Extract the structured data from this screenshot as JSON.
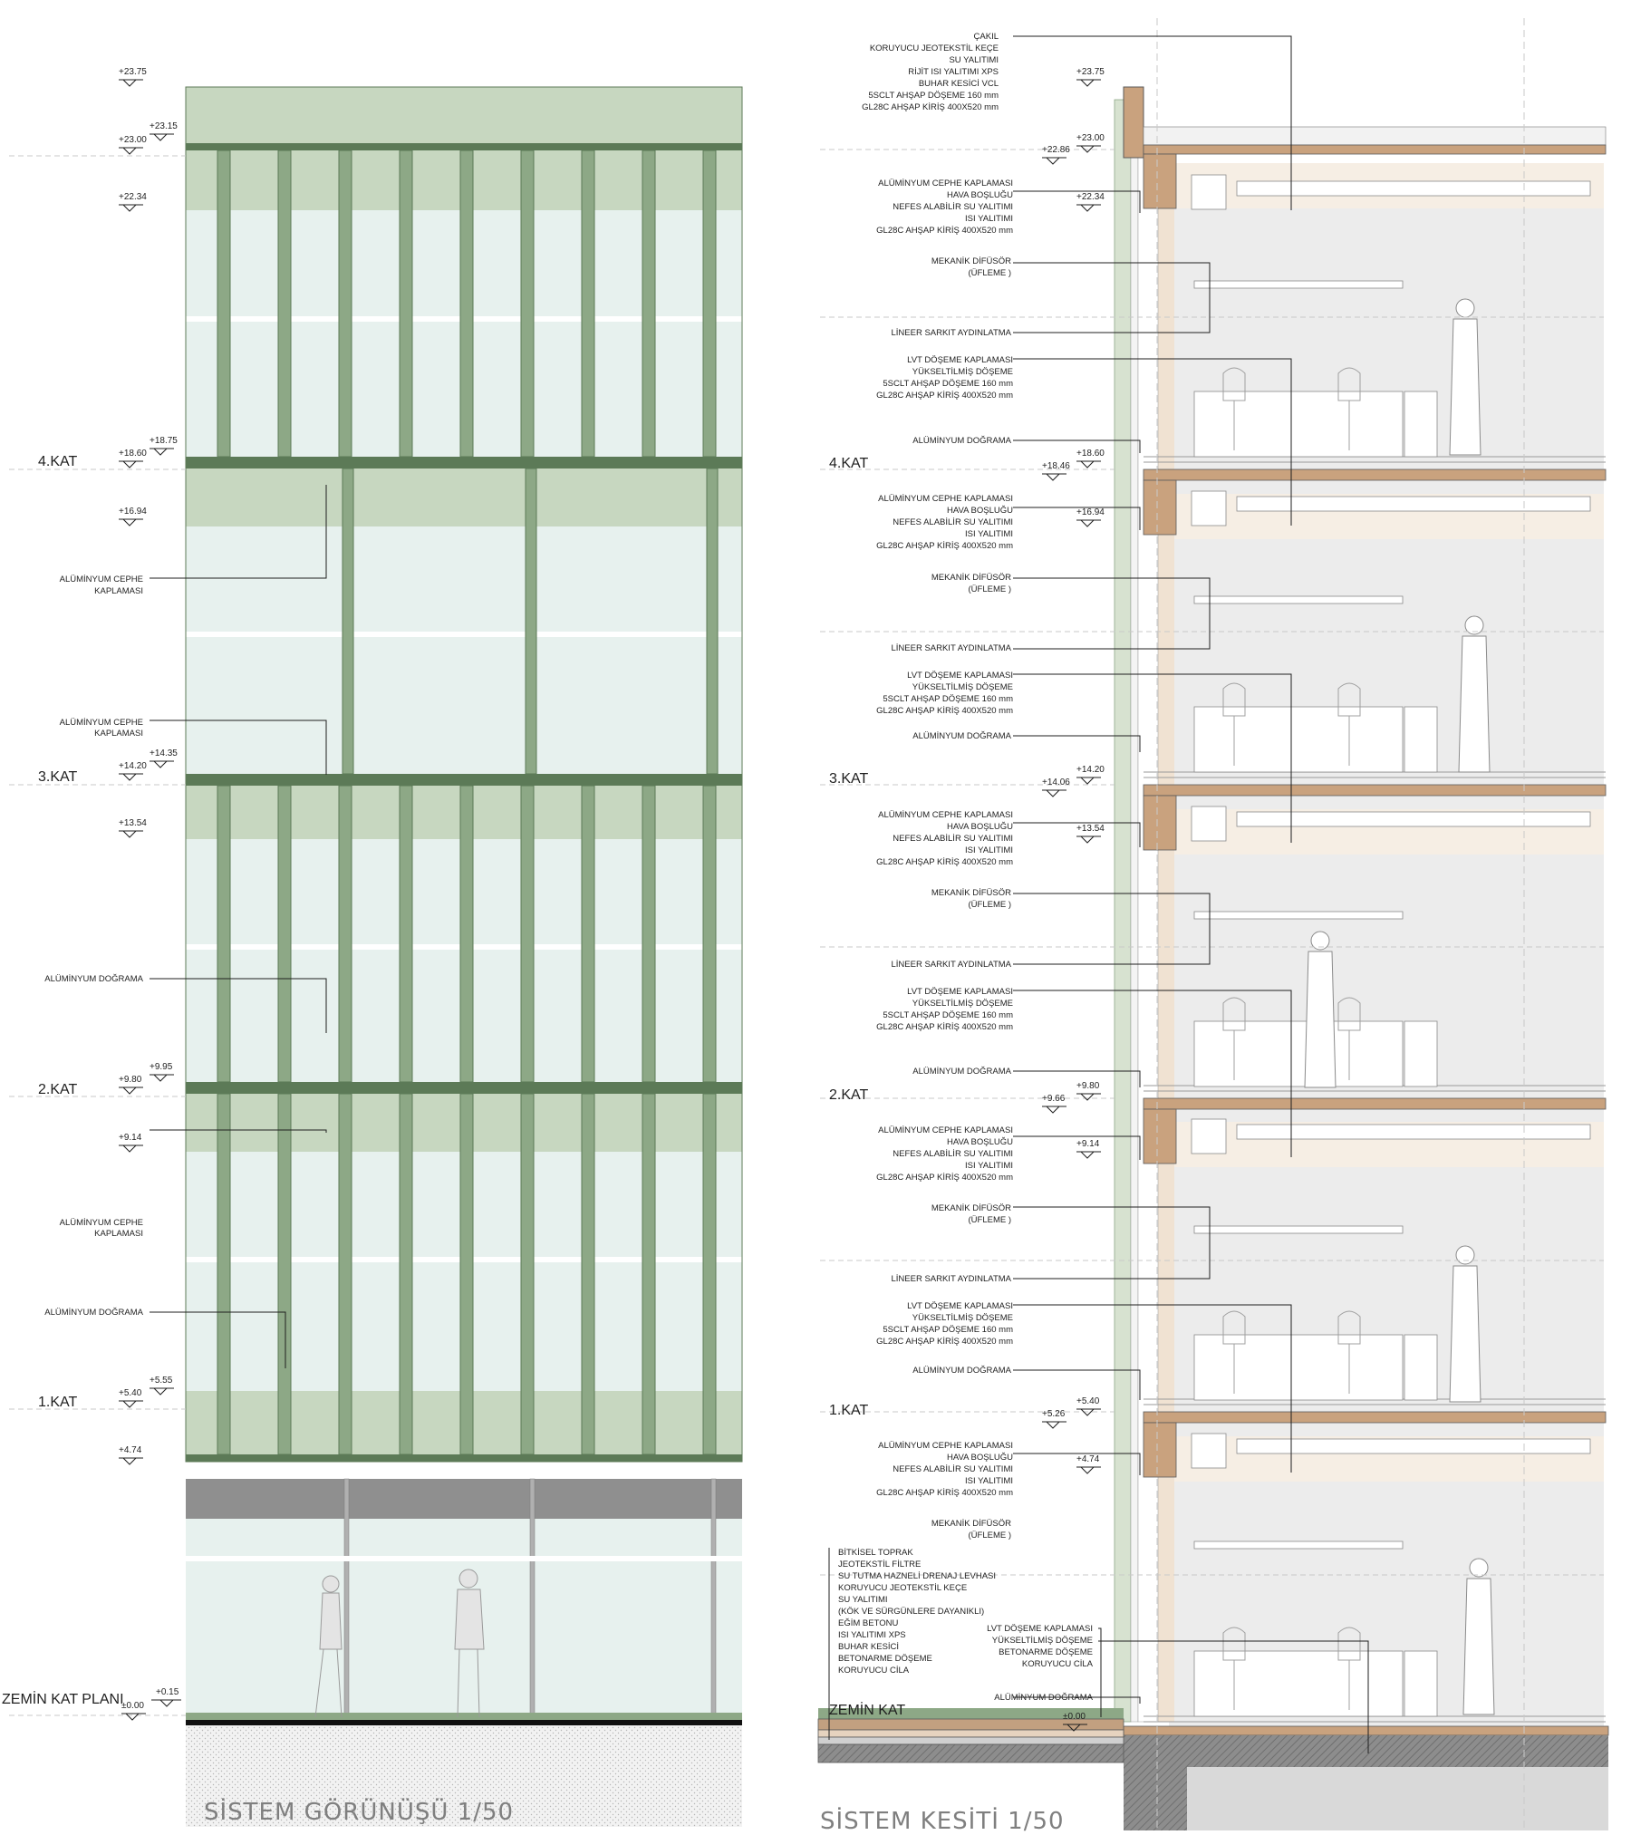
{
  "elevation": {
    "title": "SİSTEM GÖRÜNÜŞÜ  1/50",
    "levels": [
      "+23.75",
      "+23.15",
      "+23.00",
      "+22.34",
      "+18.75",
      "+18.60",
      "+16.94",
      "+14.35",
      "+14.20",
      "+13.54",
      "+9.95",
      "+9.80",
      "+9.14",
      "+5.55",
      "+5.40",
      "+4.74",
      "+0.15",
      "±0.00"
    ],
    "floors": [
      "4.KAT",
      "3.KAT",
      "2.KAT",
      "1.KAT",
      "ZEMİN KAT PLANI"
    ],
    "notes": [
      "ALÜMİNYUM CEPHE",
      "KAPLAMASI",
      "ALÜMİNYUM DOĞRAMA"
    ]
  },
  "section": {
    "title": "SİSTEM KESİTİ  1/50",
    "roof_layers": [
      "ÇAKIL",
      "KORUYUCU JEOTEKSTİL KEÇE",
      "SU YALITIMI",
      "RİJİT ISI YALITIMI XPS",
      "BUHAR KESİCİ VCL",
      "5SCLT AHŞAP DÖŞEME 160 mm",
      "GL28C AHŞAP  KİRİŞ 400X520 mm"
    ],
    "facade_layers": [
      "ALÜMİNYUM CEPHE KAPLAMASI",
      "HAVA BOŞLUĞU",
      "NEFES ALABİLİR SU YALITIMI",
      "ISI YALITIMI",
      "GL28C AHŞAP  KİRİŞ 400X520 mm"
    ],
    "mech": [
      "MEKANİK DİFÜSÖR",
      "(ÜFLEME )"
    ],
    "light": "LİNEER SARKIT AYDINLATMA",
    "floor_layers": [
      "LVT DÖŞEME KAPLAMASI",
      "YÜKSELTİLMİŞ DÖŞEME",
      "5SCLT AHŞAP DÖŞEME 160 mm",
      "GL28C AHŞAP  KİRİŞ 400X520 mm"
    ],
    "window": "ALÜMİNYUM DOĞRAMA",
    "ground_layers": [
      "BİTKİSEL TOPRAK",
      "JEOTEKSTİL FİLTRE",
      "SU TUTMA HAZNELİ DRENAJ LEVHASI",
      "KORUYUCU JEOTEKSTİL KEÇE",
      "SU YALITIMI",
      "(KÖK VE SÜRGÜNLERE DAYANIKLI)",
      "EĞİM BETONU",
      "ISI YALITIMI XPS",
      "BUHAR KESİCİ",
      "BETONARME DÖŞEME",
      "KORUYUCU CİLA"
    ],
    "ground_floor_layers": [
      "LVT DÖŞEME KAPLAMASI",
      "YÜKSELTİLMİŞ DÖŞEME",
      "BETONARME DÖŞEME",
      "KORUYUCU CİLA"
    ],
    "levels_right": [
      "+23.75",
      "+23.00",
      "+22.86",
      "+22.34",
      "+18.60",
      "+18.46",
      "+16.94",
      "+14.20",
      "+14.06",
      "+13.54",
      "+9.80",
      "+9.66",
      "+9.14",
      "+5.40",
      "+5.26",
      "+4.74",
      "±0.00"
    ],
    "floors": [
      "4.KAT",
      "3.KAT",
      "2.KAT",
      "1.KAT",
      "ZEMİN KAT"
    ]
  },
  "colors": {
    "green": "#c7d7c0",
    "green_dark": "#8da886",
    "mullion": "#5c7a57",
    "glass": "#e7f1ee",
    "wood": "#c9a27e",
    "concrete": "#9a9a9a"
  }
}
